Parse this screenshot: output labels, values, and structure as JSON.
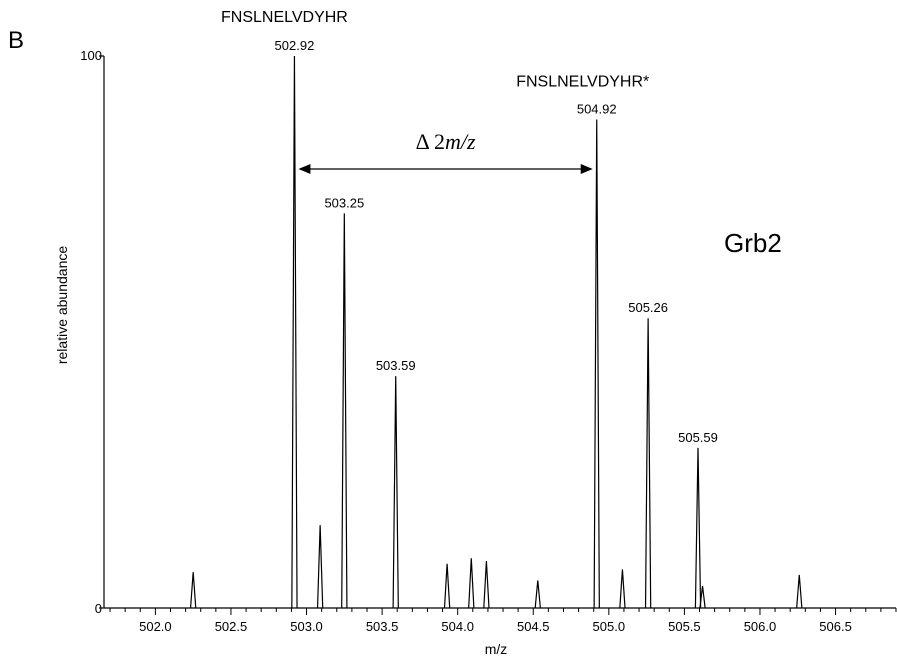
{
  "panel_label": "B",
  "protein_label": "Grb2",
  "chart_data": {
    "type": "line",
    "xlabel": "m/z",
    "ylabel": "relative abundance",
    "xlim": [
      501.66,
      506.9
    ],
    "ylim": [
      0,
      100
    ],
    "x_ticks": [
      "502.0",
      "502.5",
      "503.0",
      "503.5",
      "504.0",
      "504.5",
      "505.0",
      "505.5",
      "506.0",
      "506.5"
    ],
    "y_ticks": [
      "0",
      "100"
    ],
    "peptides": [
      {
        "label": "FNSLNELVDYHR",
        "x": 502.92
      },
      {
        "label": "FNSLNELVDYHR*",
        "x": 504.92
      }
    ],
    "shift_annotation": {
      "prefix": "Δ 2",
      "unit": "m/z",
      "from": 502.92,
      "to": 504.92
    },
    "peaks": [
      {
        "x": 502.25,
        "y": 6.5
      },
      {
        "x": 502.92,
        "y": 100,
        "label": "502.92"
      },
      {
        "x": 503.09,
        "y": 15
      },
      {
        "x": 503.25,
        "y": 71.5,
        "label": "503.25"
      },
      {
        "x": 503.59,
        "y": 42,
        "label": "503.59"
      },
      {
        "x": 503.93,
        "y": 8
      },
      {
        "x": 504.09,
        "y": 9
      },
      {
        "x": 504.19,
        "y": 8.5
      },
      {
        "x": 504.53,
        "y": 5
      },
      {
        "x": 504.92,
        "y": 88.5,
        "label": "504.92"
      },
      {
        "x": 505.09,
        "y": 7
      },
      {
        "x": 505.26,
        "y": 52.5,
        "label": "505.26"
      },
      {
        "x": 505.59,
        "y": 29,
        "label": "505.59"
      },
      {
        "x": 505.62,
        "y": 4
      },
      {
        "x": 506.26,
        "y": 6
      }
    ]
  }
}
